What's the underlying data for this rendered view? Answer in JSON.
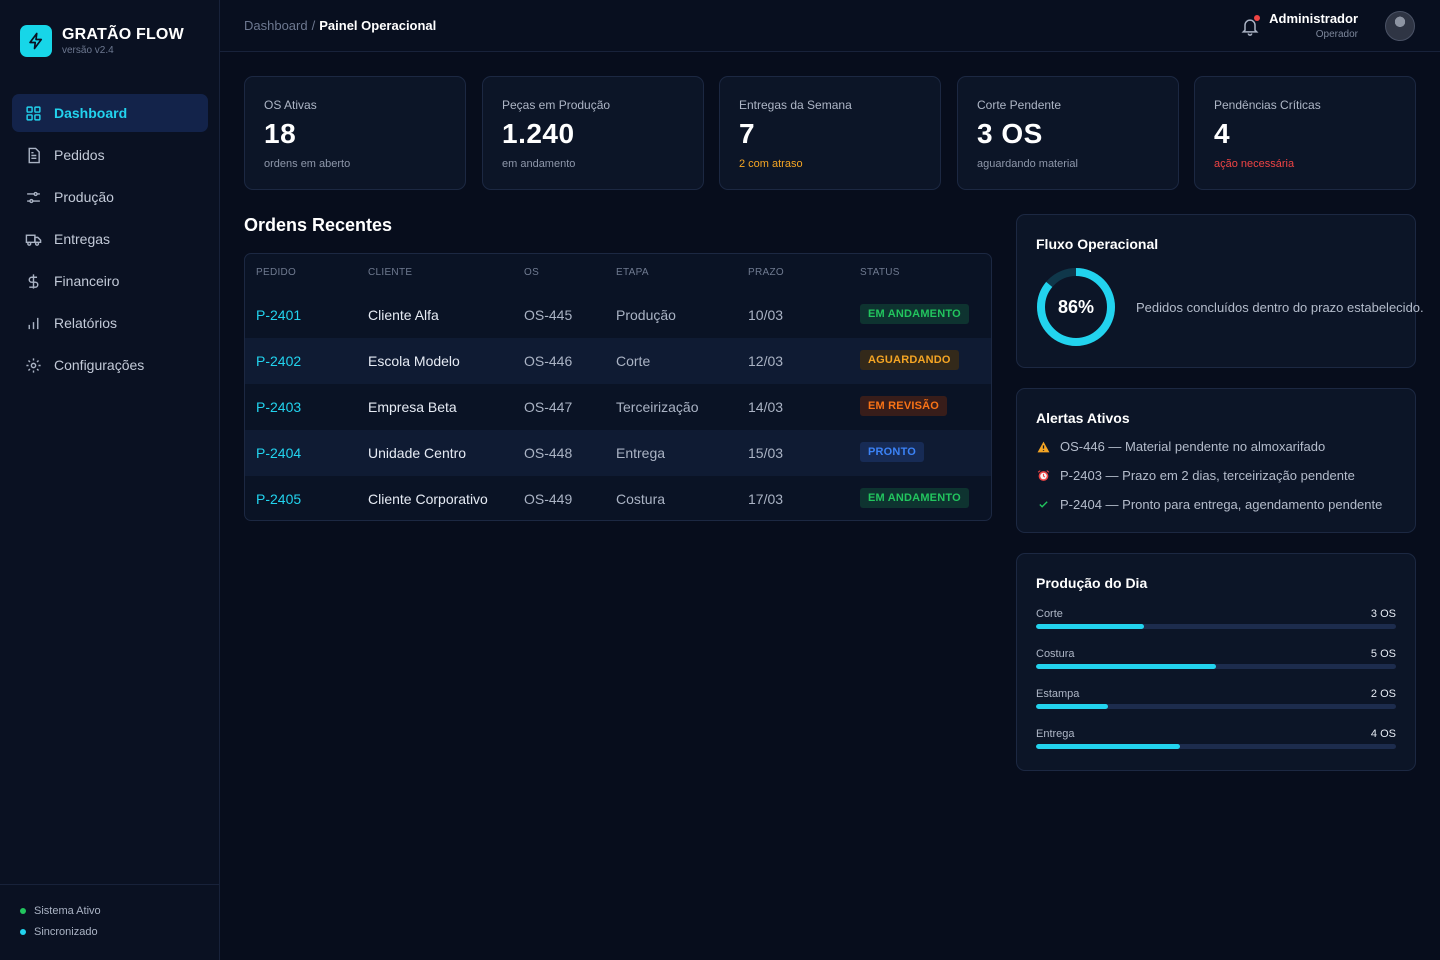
{
  "brand": {
    "name": "GRATÃO FLOW",
    "version": "versão v2.4"
  },
  "sidebar": {
    "items": [
      {
        "label": "Dashboard",
        "icon": "grid-icon"
      },
      {
        "label": "Pedidos",
        "icon": "document-icon"
      },
      {
        "label": "Produção",
        "icon": "sliders-icon"
      },
      {
        "label": "Entregas",
        "icon": "truck-icon"
      },
      {
        "label": "Financeiro",
        "icon": "dollar-icon"
      },
      {
        "label": "Relatórios",
        "icon": "bar-chart-icon"
      },
      {
        "label": "Configurações",
        "icon": "gear-icon"
      }
    ],
    "status": [
      {
        "label": "Sistema Ativo",
        "color": "#22c55e"
      },
      {
        "label": "Sincronizado",
        "color": "#22d3ee"
      }
    ]
  },
  "header": {
    "breadcrumb_parent": "Dashboard",
    "breadcrumb_sep": "/",
    "breadcrumb_current": "Painel Operacional",
    "user_name": "Administrador",
    "user_role": "Operador"
  },
  "kpis": [
    {
      "label": "OS Ativas",
      "value": "18",
      "sub": "ordens em aberto",
      "sub_color": "#8e97aa"
    },
    {
      "label": "Peças em Produção",
      "value": "1.240",
      "sub": "em andamento",
      "sub_color": "#8e97aa"
    },
    {
      "label": "Entregas da Semana",
      "value": "7",
      "sub": "2 com atraso",
      "sub_color": "#f5a524"
    },
    {
      "label": "Corte Pendente",
      "value": "3 OS",
      "sub": "aguardando material",
      "sub_color": "#8e97aa"
    },
    {
      "label": "Pendências Críticas",
      "value": "4",
      "sub": "ação necessária",
      "sub_color": "#ef4444"
    }
  ],
  "orders": {
    "title": "Ordens Recentes",
    "columns": [
      "PEDIDO",
      "CLIENTE",
      "OS",
      "ETAPA",
      "PRAZO",
      "STATUS"
    ],
    "rows": [
      {
        "pedido": "P-2401",
        "cliente": "Cliente Alfa",
        "os": "OS-445",
        "etapa": "Produção",
        "prazo": "10/03",
        "status": "EM ANDAMENTO"
      },
      {
        "pedido": "P-2402",
        "cliente": "Escola Modelo",
        "os": "OS-446",
        "etapa": "Corte",
        "prazo": "12/03",
        "status": "AGUARDANDO"
      },
      {
        "pedido": "P-2403",
        "cliente": "Empresa Beta",
        "os": "OS-447",
        "etapa": "Terceirização",
        "prazo": "14/03",
        "status": "EM REVISÃO"
      },
      {
        "pedido": "P-2404",
        "cliente": "Unidade Centro",
        "os": "OS-448",
        "etapa": "Entrega",
        "prazo": "15/03",
        "status": "PRONTO"
      },
      {
        "pedido": "P-2405",
        "cliente": "Cliente Corporativo",
        "os": "OS-449",
        "etapa": "Costura",
        "prazo": "17/03",
        "status": "EM ANDAMENTO"
      }
    ]
  },
  "flux": {
    "title": "Fluxo Operacional",
    "percent": 86,
    "percent_label": "86%",
    "description": "Pedidos concluídos dentro do prazo estabelecido."
  },
  "alerts": {
    "title": "Alertas Ativos",
    "items": [
      {
        "text": "OS-446 — Material pendente no almoxarifado",
        "icon": "warning-icon",
        "color": "#f5a524"
      },
      {
        "text": "P-2403 — Prazo em 2 dias, terceirização pendente",
        "icon": "alarm-clock-icon",
        "color": "#ef4444"
      },
      {
        "text": "P-2404 — Pronto para entrega, agendamento pendente",
        "icon": "check-icon",
        "color": "#22c55e"
      }
    ]
  },
  "production": {
    "title": "Produção do Dia",
    "items": [
      {
        "label": "Corte",
        "count": "3 OS",
        "fraction": 0.3
      },
      {
        "label": "Costura",
        "count": "5 OS",
        "fraction": 0.5
      },
      {
        "label": "Estampa",
        "count": "2 OS",
        "fraction": 0.2
      },
      {
        "label": "Entrega",
        "count": "4 OS",
        "fraction": 0.4
      }
    ]
  },
  "colors": {
    "accent": "#22d3ee",
    "background": "#070d1c",
    "card": "#0c1527"
  }
}
